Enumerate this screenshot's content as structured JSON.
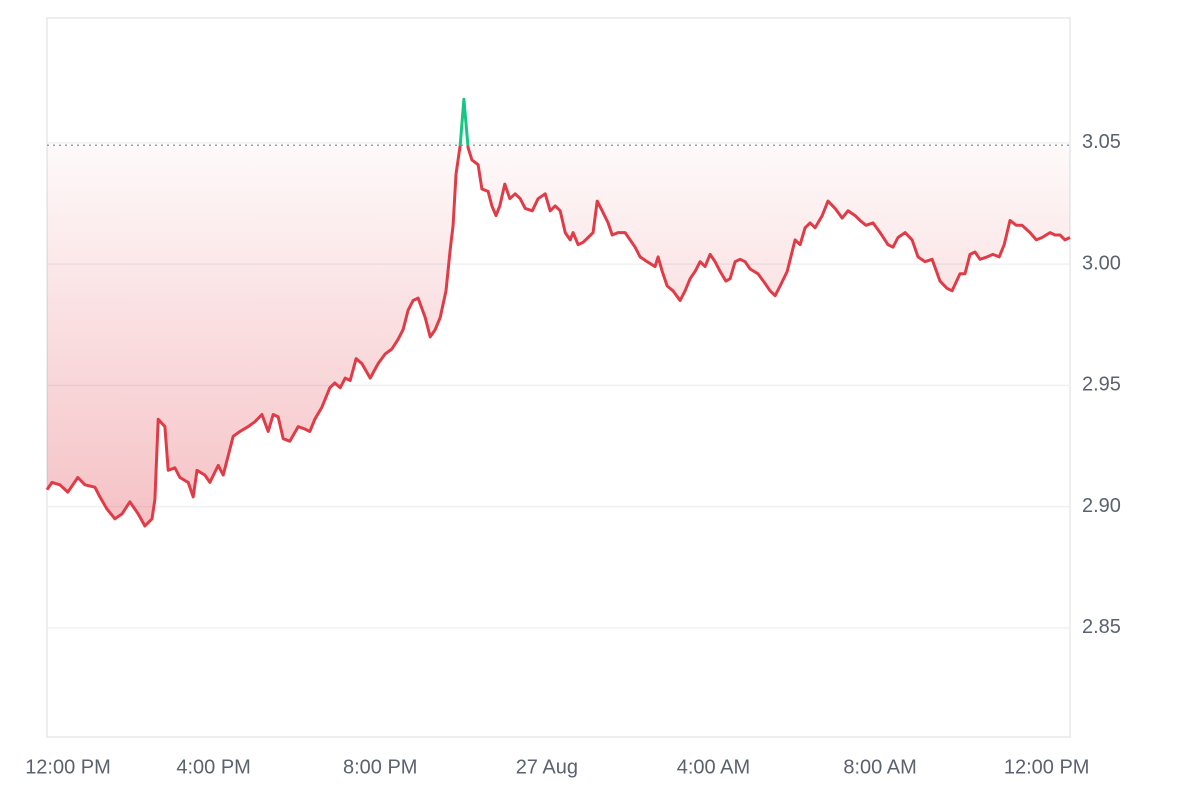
{
  "chart_data": {
    "type": "line",
    "x": [
      0,
      0.12,
      0.31,
      0.5,
      0.74,
      0.91,
      1.15,
      1.27,
      1.44,
      1.63,
      1.8,
      1.99,
      2.19,
      2.35,
      2.52,
      2.59,
      2.67,
      2.83,
      2.91,
      3.07,
      3.19,
      3.39,
      3.51,
      3.6,
      3.79,
      3.91,
      4.11,
      4.23,
      4.35,
      4.47,
      4.63,
      4.83,
      4.99,
      5.16,
      5.31,
      5.43,
      5.55,
      5.67,
      5.83,
      6.03,
      6.19,
      6.31,
      6.43,
      6.6,
      6.79,
      6.91,
      7.04,
      7.16,
      7.28,
      7.42,
      7.56,
      7.76,
      7.95,
      8.12,
      8.28,
      8.43,
      8.55,
      8.67,
      8.79,
      8.91,
      9.08,
      9.2,
      9.32,
      9.44,
      9.58,
      9.68,
      9.75,
      9.82,
      9.92,
      10.01,
      10.11,
      10.2,
      10.35,
      10.44,
      10.59,
      10.68,
      10.78,
      10.87,
      10.99,
      11.11,
      11.24,
      11.36,
      11.48,
      11.65,
      11.79,
      11.96,
      12.08,
      12.2,
      12.32,
      12.44,
      12.56,
      12.63,
      12.75,
      12.87,
      12.99,
      13.11,
      13.21,
      13.33,
      13.47,
      13.57,
      13.71,
      13.88,
      14,
      14.12,
      14.24,
      14.41,
      14.6,
      14.67,
      14.77,
      14.89,
      15.03,
      15.2,
      15.32,
      15.44,
      15.56,
      15.68,
      15.8,
      15.92,
      16.04,
      16.16,
      16.3,
      16.4,
      16.52,
      16.64,
      16.76,
      16.88,
      17.07,
      17.24,
      17.36,
      17.48,
      17.6,
      17.77,
      17.96,
      18.08,
      18.2,
      18.32,
      18.44,
      18.61,
      18.75,
      18.92,
      19.09,
      19.23,
      19.4,
      19.52,
      19.66,
      19.83,
      20,
      20.19,
      20.31,
      20.43,
      20.6,
      20.77,
      20.91,
      21.08,
      21.25,
      21.44,
      21.61,
      21.73,
      21.92,
      22.04,
      22.16,
      22.28,
      22.4,
      22.57,
      22.71,
      22.86,
      22.98,
      23.12,
      23.27,
      23.41,
      23.6,
      23.75,
      23.89,
      24.08,
      24.2,
      24.32,
      24.44,
      24.56
    ],
    "series": [
      {
        "color": "#e03c48",
        "color_above": "#16c784",
        "values": [
          2.907,
          2.91,
          2.909,
          2.906,
          2.912,
          2.909,
          2.908,
          2.904,
          2.899,
          2.895,
          2.897,
          2.902,
          2.897,
          2.892,
          2.895,
          2.903,
          2.936,
          2.933,
          2.915,
          2.916,
          2.912,
          2.91,
          2.904,
          2.915,
          2.913,
          2.91,
          2.917,
          2.913,
          2.921,
          2.929,
          2.931,
          2.933,
          2.935,
          2.938,
          2.931,
          2.938,
          2.937,
          2.928,
          2.927,
          2.933,
          2.932,
          2.931,
          2.936,
          2.941,
          2.949,
          2.951,
          2.949,
          2.953,
          2.952,
          2.961,
          2.959,
          2.953,
          2.959,
          2.963,
          2.965,
          2.969,
          2.973,
          2.981,
          2.985,
          2.986,
          2.978,
          2.97,
          2.973,
          2.978,
          2.989,
          3.006,
          3.016,
          3.037,
          3.049,
          3.068,
          3.048,
          3.043,
          3.041,
          3.031,
          3.03,
          3.024,
          3.02,
          3.024,
          3.033,
          3.027,
          3.029,
          3.027,
          3.023,
          3.022,
          3.027,
          3.029,
          3.022,
          3.024,
          3.022,
          3.013,
          3.01,
          3.013,
          3.008,
          3.009,
          3.011,
          3.013,
          3.026,
          3.022,
          3.017,
          3.012,
          3.013,
          3.013,
          3.01,
          3.007,
          3.003,
          3.001,
          2.999,
          3.003,
          2.997,
          2.991,
          2.989,
          2.985,
          2.989,
          2.994,
          2.997,
          3.001,
          2.999,
          3.004,
          3.001,
          2.997,
          2.993,
          2.994,
          3.001,
          3.002,
          3.001,
          2.998,
          2.996,
          2.992,
          2.989,
          2.987,
          2.991,
          2.997,
          3.01,
          3.008,
          3.015,
          3.017,
          3.015,
          3.02,
          3.026,
          3.023,
          3.019,
          3.022,
          3.02,
          3.018,
          3.016,
          3.017,
          3.013,
          3.008,
          3.007,
          3.011,
          3.013,
          3.01,
          3.003,
          3.001,
          3.002,
          2.993,
          2.99,
          2.989,
          2.996,
          2.996,
          3.004,
          3.005,
          3.002,
          3.003,
          3.004,
          3.003,
          3.008,
          3.018,
          3.016,
          3.016,
          3.013,
          3.01,
          3.011,
          3.013,
          3.012,
          3.012,
          3.01,
          3.011
        ]
      }
    ],
    "reference_line": 3.049,
    "xlim": [
      0,
      24.56
    ],
    "xticks": [
      {
        "value": 0,
        "label": "12:00 PM"
      },
      {
        "value": 4,
        "label": "4:00 PM"
      },
      {
        "value": 8,
        "label": "8:00 PM"
      },
      {
        "value": 12,
        "label": "27 Aug"
      },
      {
        "value": 16,
        "label": "4:00 AM"
      },
      {
        "value": 20,
        "label": "8:00 AM"
      },
      {
        "value": 24,
        "label": "12:00 PM"
      }
    ],
    "ylim": [
      2.805,
      3.1015
    ],
    "yticks": [
      2.85,
      {
        "value": 2.9,
        "label": "2.90"
      },
      2.95,
      {
        "value": 3,
        "label": "3.00"
      },
      3.05
    ],
    "grid": true
  }
}
